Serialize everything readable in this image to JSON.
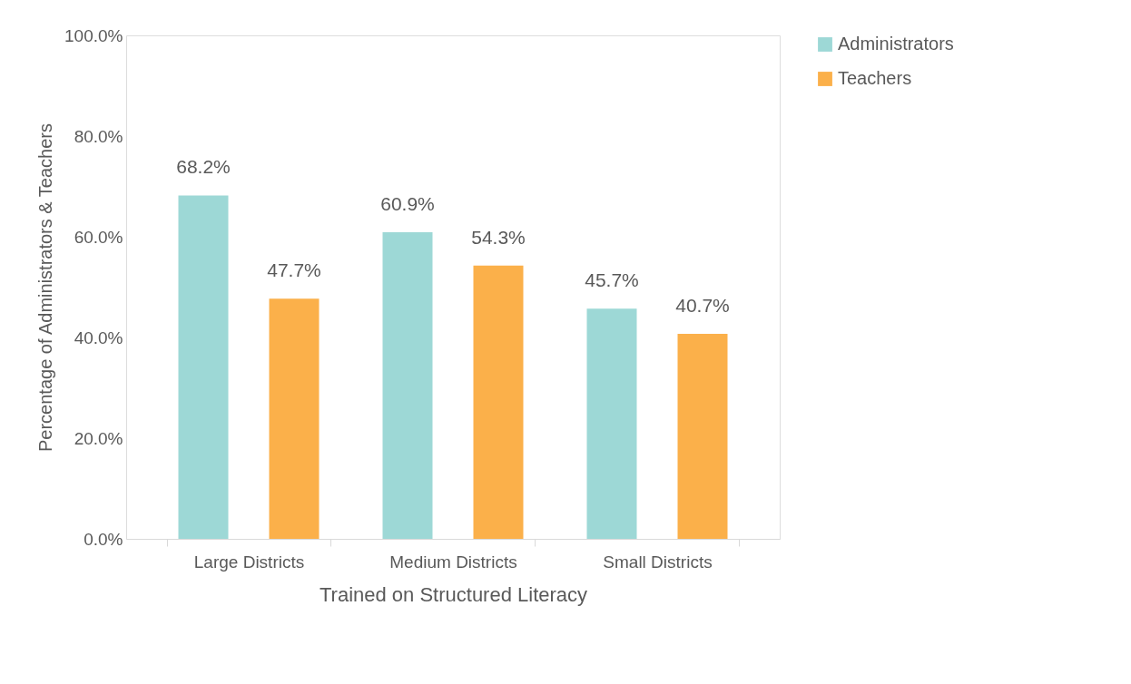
{
  "chart_data": {
    "type": "bar",
    "xlabel": "Trained on Structured Literacy",
    "ylabel": "Percentage of Administrators & Teachers",
    "categories": [
      "Large Districts",
      "Medium Districts",
      "Small Districts"
    ],
    "series": [
      {
        "name": "Administrators",
        "color": "#9dd8d6",
        "values": [
          68.2,
          60.9,
          45.7
        ],
        "value_labels": [
          "68.2%",
          "60.9%",
          "45.7%"
        ]
      },
      {
        "name": "Teachers",
        "color": "#fbb04a",
        "values": [
          47.7,
          54.3,
          40.7
        ],
        "value_labels": [
          "47.7%",
          "54.3%",
          "40.7%"
        ]
      }
    ],
    "ylim": [
      0,
      100
    ],
    "yticks": [
      {
        "value": 0,
        "label": "0.0%"
      },
      {
        "value": 20,
        "label": "20.0%"
      },
      {
        "value": 40,
        "label": "40.0%"
      },
      {
        "value": 60,
        "label": "60.0%"
      },
      {
        "value": 80,
        "label": "80.0%"
      },
      {
        "value": 100,
        "label": "100.0%"
      }
    ],
    "grid": false,
    "legend": "right"
  }
}
